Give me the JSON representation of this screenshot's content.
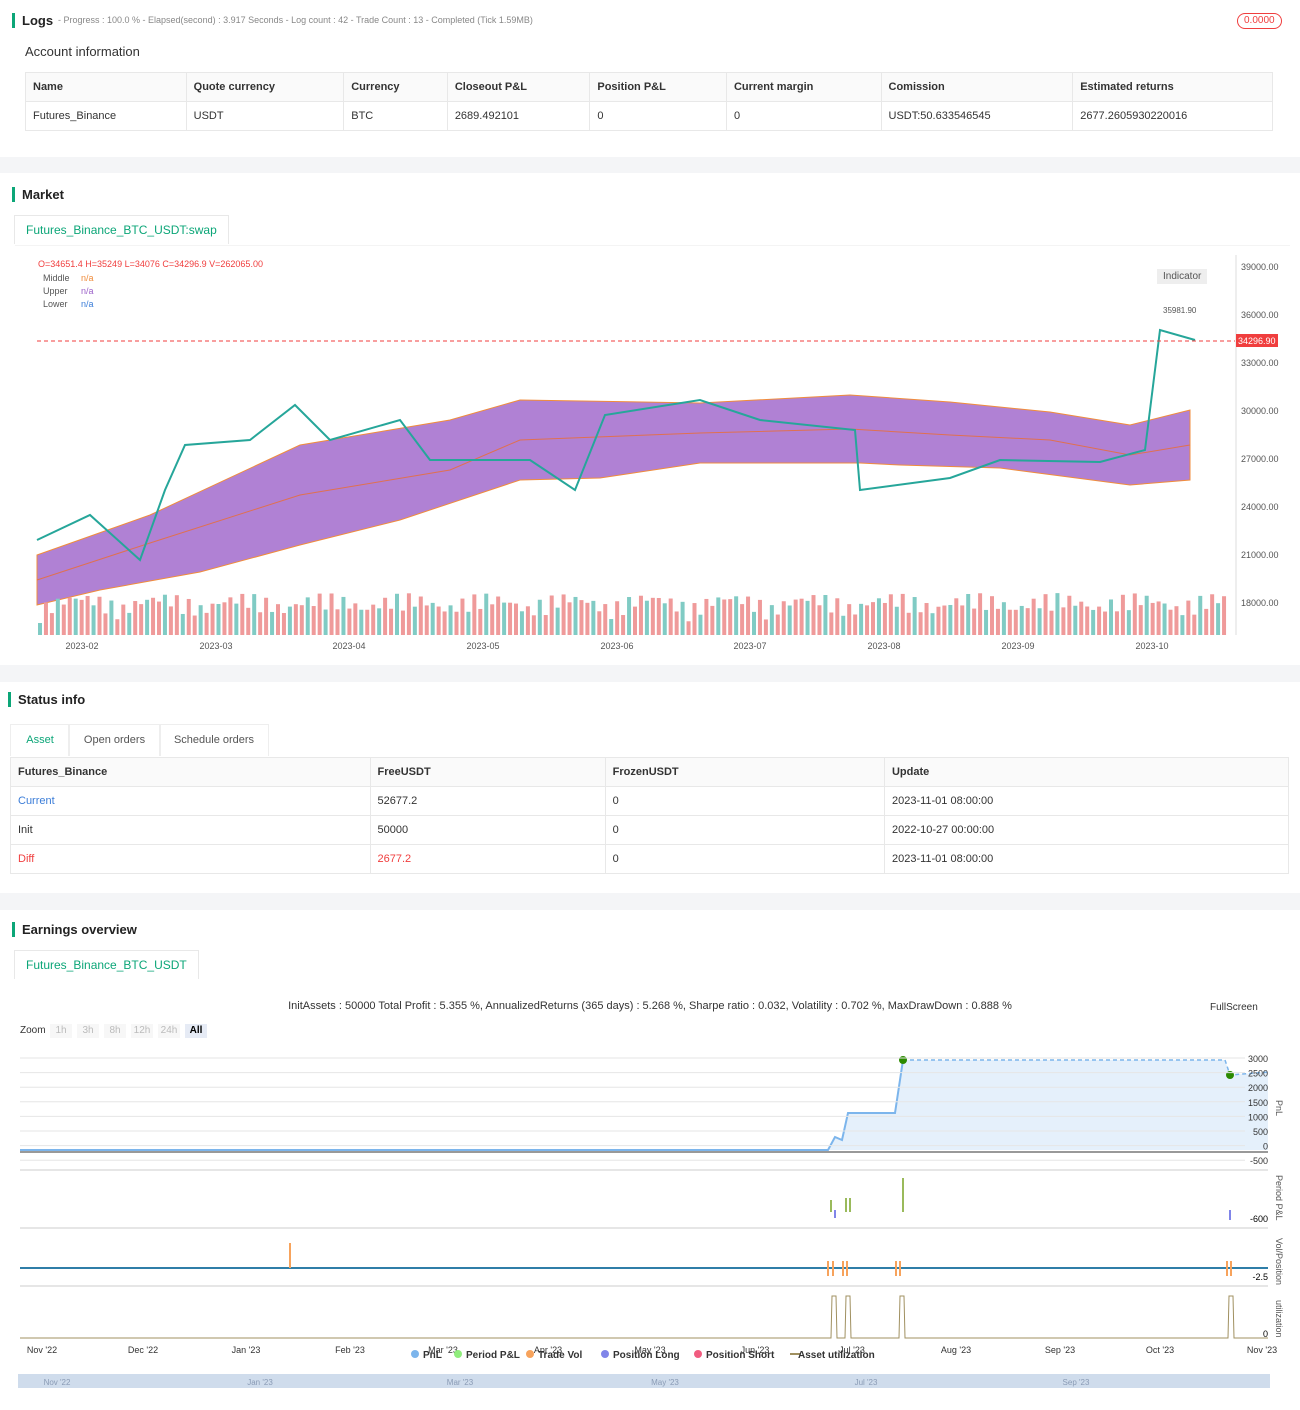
{
  "logs": {
    "title": "Logs",
    "summary": "- Progress : 100.0 % - Elapsed(second) : 3.917 Seconds - Log count : 42 - Trade Count : 13 - Completed (Tick 1.59MB)",
    "badge": "0.0000"
  },
  "account": {
    "title": "Account information",
    "headers": [
      "Name",
      "Quote currency",
      "Currency",
      "Closeout P&L",
      "Position P&L",
      "Current margin",
      "Comission",
      "Estimated returns"
    ],
    "rows": [
      [
        "Futures_Binance",
        "USDT",
        "BTC",
        "2689.492101",
        "0",
        "0",
        "USDT:50.633546545",
        "2677.2605930220016"
      ]
    ]
  },
  "market": {
    "title": "Market",
    "tab": "Futures_Binance_BTC_USDT:swap",
    "ohlc": "O=34651.4 H=35249 L=34076 C=34296.9 V=262065.00",
    "legend": [
      {
        "name": "Middle",
        "value": "n/a"
      },
      {
        "name": "Upper",
        "value": "n/a"
      },
      {
        "name": "Lower",
        "value": "n/a"
      }
    ],
    "indicator": "Indicator",
    "yticks": [
      "39000.00",
      "36000.00",
      "33000.00",
      "30000.00",
      "27000.00",
      "24000.00",
      "21000.00",
      "18000.00"
    ],
    "xticks": [
      "2023-02",
      "2023-03",
      "2023-04",
      "2023-05",
      "2023-06",
      "2023-07",
      "2023-08",
      "2023-09",
      "2023-10"
    ],
    "last_price": "34296.90",
    "high_label": "35981.90"
  },
  "status": {
    "title": "Status info",
    "tabs": [
      "Asset",
      "Open orders",
      "Schedule orders"
    ],
    "headers": [
      "Futures_Binance",
      "FreeUSDT",
      "FrozenUSDT",
      "Update"
    ],
    "rows": [
      [
        "Current",
        "52677.2",
        "0",
        "2023-11-01 08:00:00"
      ],
      [
        "Init",
        "50000",
        "0",
        "2022-10-27 00:00:00"
      ],
      [
        "Diff",
        "2677.2",
        "0",
        "2023-11-01 08:00:00"
      ]
    ]
  },
  "earnings": {
    "title": "Earnings overview",
    "tab": "Futures_Binance_BTC_USDT",
    "summary": "InitAssets : 50000 Total Profit : 5.355 %, AnnualizedReturns (365 days) : 5.268 %, Sharpe ratio : 0.032, Volatility : 0.702 %, MaxDrawDown : 0.888 %",
    "fullscreen": "FullScreen",
    "zoom": "Zoom",
    "zoom_buttons": [
      "1h",
      "3h",
      "8h",
      "12h",
      "24h",
      "All"
    ],
    "pnl_ticks": [
      "3000",
      "2500",
      "2000",
      "1500",
      "1000",
      "500",
      "0",
      "-500"
    ],
    "axis_titles": [
      "PnL",
      "Period P&L",
      "Vol/Position",
      "utilization"
    ],
    "period_tick": "-600",
    "vol_tick": "-2.5",
    "util_tick": "0",
    "xticks": [
      "Nov '22",
      "Dec '22",
      "Jan '23",
      "Feb '23",
      "Mar '23",
      "Apr '23",
      "May '23",
      "Jun '23",
      "Jul '23",
      "Aug '23",
      "Sep '23",
      "Oct '23",
      "Nov '23"
    ],
    "legend": [
      "PnL",
      "Period P&L",
      "Trade Vol",
      "Position Long",
      "Position Short",
      "Asset utilization"
    ],
    "navigator": [
      "Nov '22",
      "Jan '23",
      "Mar '23",
      "May '23",
      "Jul '23",
      "Sep '23"
    ]
  }
}
